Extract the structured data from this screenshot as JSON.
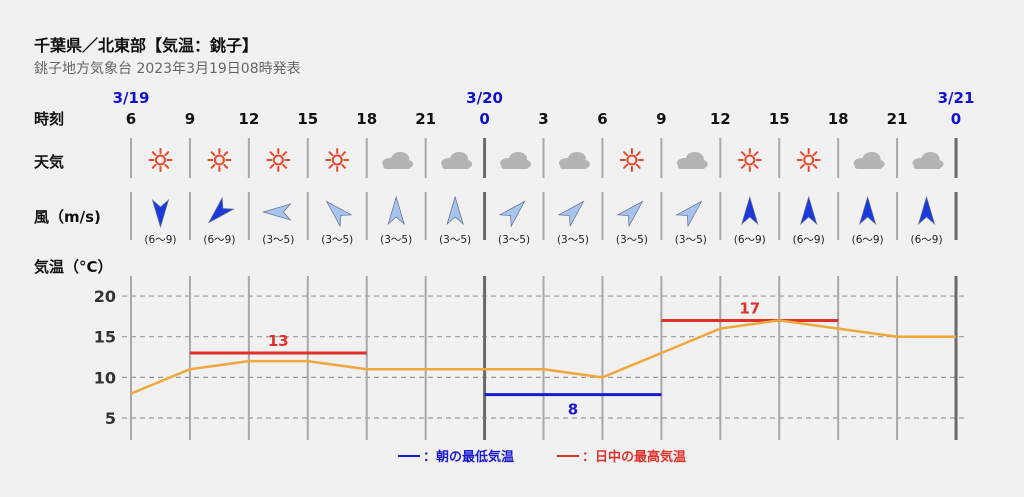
{
  "header": {
    "title": "千葉県／北東部【気温：銚子】",
    "subtitle": "銚子地方気象台 2023年3月19日08時発表"
  },
  "row_labels": {
    "time": "時刻",
    "weather": "天気",
    "wind": "風（m/s)",
    "temp": "気温（°C）"
  },
  "dates": [
    "3/19",
    "3/20",
    "3/21"
  ],
  "hours": [
    "6",
    "9",
    "12",
    "15",
    "18",
    "21",
    "0",
    "3",
    "6",
    "9",
    "12",
    "15",
    "18",
    "21",
    "0"
  ],
  "weather_icons": [
    "sun-icon",
    "sun-icon",
    "sun-icon",
    "sun-icon",
    "cloud-icon",
    "cloud-icon",
    "cloud-icon",
    "cloud-icon",
    "sun-icon",
    "cloud-icon",
    "sun-icon",
    "sun-icon",
    "cloud-icon",
    "cloud-icon"
  ],
  "wind": [
    {
      "direction": "N",
      "speed": "(6～9)",
      "strength": "strong"
    },
    {
      "direction": "NE",
      "speed": "(6～9)",
      "strength": "strong"
    },
    {
      "direction": "E",
      "speed": "(3～5)",
      "strength": "weak"
    },
    {
      "direction": "SE",
      "speed": "(3～5)",
      "strength": "weak"
    },
    {
      "direction": "S",
      "speed": "(3～5)",
      "strength": "weak"
    },
    {
      "direction": "S",
      "speed": "(3～5)",
      "strength": "weak"
    },
    {
      "direction": "SW",
      "speed": "(3～5)",
      "strength": "weak"
    },
    {
      "direction": "SW",
      "speed": "(3～5)",
      "strength": "weak"
    },
    {
      "direction": "SW",
      "speed": "(3～5)",
      "strength": "weak"
    },
    {
      "direction": "SW",
      "speed": "(3～5)",
      "strength": "weak"
    },
    {
      "direction": "S",
      "speed": "(6～9)",
      "strength": "strong"
    },
    {
      "direction": "S",
      "speed": "(6～9)",
      "strength": "strong"
    },
    {
      "direction": "S",
      "speed": "(6～9)",
      "strength": "strong"
    },
    {
      "direction": "S",
      "speed": "(6～9)",
      "strength": "strong"
    }
  ],
  "legend": {
    "min_label": "：朝の最低気温",
    "max_label": "：日中の最高気温"
  },
  "colors": {
    "date": "#1010d0",
    "line": "#f0a83c",
    "min": "#1a1ad0",
    "max": "#e0302a",
    "sun": "#e8482a",
    "cloud": "#b4b4b4",
    "wind_strong": "#1c3adc",
    "wind_weak": "#a8c4ec"
  },
  "chart_data": {
    "type": "line",
    "x": [
      "3/19 6",
      "3/19 9",
      "3/19 12",
      "3/19 15",
      "3/19 18",
      "3/19 21",
      "3/20 0",
      "3/20 3",
      "3/20 6",
      "3/20 9",
      "3/20 12",
      "3/20 15",
      "3/20 18",
      "3/20 21",
      "3/21 0"
    ],
    "temperature": [
      8,
      11,
      12,
      12,
      11,
      11,
      11,
      11,
      10,
      13,
      16,
      17,
      16,
      15,
      15
    ],
    "y_ticks": [
      20,
      15,
      10,
      5
    ],
    "ylim": [
      2.5,
      22.5
    ],
    "min_temp": {
      "value": 8,
      "label": "8",
      "from": "3/20 0",
      "to": "3/20 9"
    },
    "max_temps": [
      {
        "value": 13,
        "label": "13",
        "from": "3/19 9",
        "to": "3/19 18"
      },
      {
        "value": 17,
        "label": "17",
        "from": "3/20 9",
        "to": "3/20 18"
      }
    ]
  }
}
